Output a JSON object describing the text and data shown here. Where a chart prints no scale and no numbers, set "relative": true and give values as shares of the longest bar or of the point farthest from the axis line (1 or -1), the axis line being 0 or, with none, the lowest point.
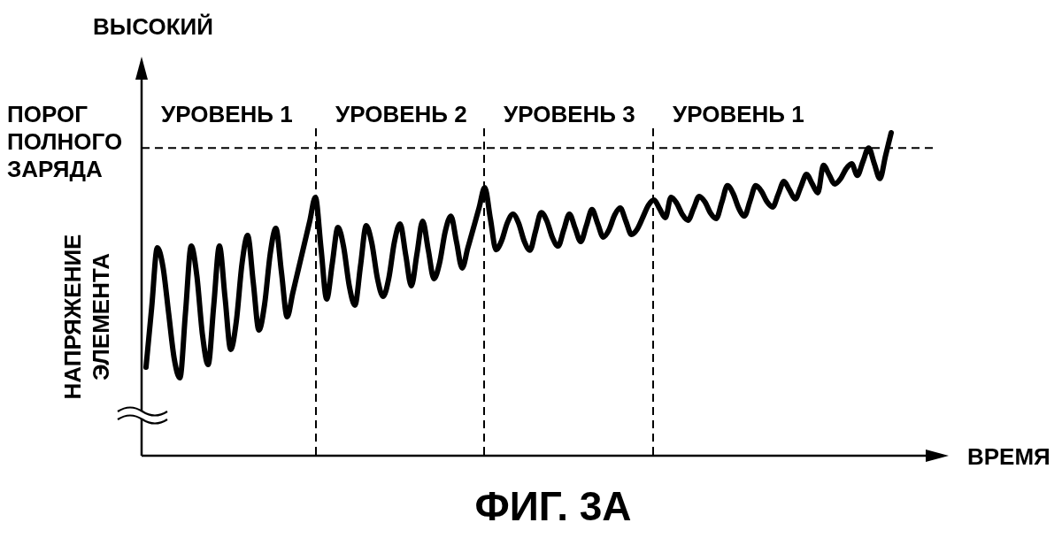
{
  "chart_data": {
    "type": "line",
    "title": "ФИГ. 3А",
    "xlabel": "ВРЕМЯ",
    "ylabel": "НАПРЯЖЕНИЕ ЭЛЕМЕНТА",
    "relative": true,
    "categories": [
      null,
      null,
      null,
      null,
      null,
      null,
      null,
      null,
      null,
      null,
      null,
      null,
      null,
      null,
      null,
      null,
      null,
      null,
      null,
      null,
      null,
      null,
      null,
      null,
      null,
      null,
      null,
      null,
      null,
      null,
      null,
      null,
      null,
      null,
      null,
      null,
      null,
      null,
      null,
      null,
      null,
      null,
      null,
      null,
      null,
      null,
      null,
      null,
      null,
      null,
      null,
      null,
      null,
      null,
      null,
      null,
      null,
      null,
      null,
      null,
      null,
      null,
      null,
      null,
      null,
      null,
      null,
      null,
      null,
      null,
      null,
      null,
      null,
      null,
      null,
      null,
      null,
      null,
      null,
      null,
      null,
      null,
      null,
      null,
      null,
      null,
      null,
      null,
      null,
      null,
      null,
      null,
      null,
      null,
      null,
      null,
      null,
      null,
      null,
      null,
      null,
      null,
      null,
      null,
      null,
      null,
      null,
      null,
      null,
      null,
      null,
      null,
      null,
      null,
      null,
      null,
      null,
      null,
      null,
      null,
      null,
      null,
      null,
      null,
      null,
      null,
      null,
      null,
      null,
      null,
      null,
      null,
      null
    ],
    "color": "#000000",
    "values": [
      0.274,
      0.458,
      0.644,
      0.585,
      0.442,
      0.3,
      0.241,
      0.445,
      0.649,
      0.558,
      0.374,
      0.282,
      0.466,
      0.649,
      0.489,
      0.329,
      0.417,
      0.594,
      0.682,
      0.536,
      0.389,
      0.468,
      0.625,
      0.704,
      0.567,
      0.43,
      0.504,
      0.578,
      0.652,
      0.726,
      0.8,
      0.642,
      0.485,
      0.596,
      0.707,
      0.647,
      0.526,
      0.466,
      0.589,
      0.712,
      0.658,
      0.548,
      0.493,
      0.549,
      0.662,
      0.718,
      0.622,
      0.526,
      0.626,
      0.726,
      0.637,
      0.548,
      0.597,
      0.694,
      0.742,
      0.662,
      0.581,
      0.643,
      0.705,
      0.768,
      0.83,
      0.734,
      0.638,
      0.666,
      0.721,
      0.748,
      0.72,
      0.664,
      0.636,
      0.695,
      0.753,
      0.727,
      0.675,
      0.649,
      0.699,
      0.748,
      0.705,
      0.663,
      0.712,
      0.762,
      0.719,
      0.677,
      0.699,
      0.745,
      0.767,
      0.726,
      0.685,
      0.701,
      0.738,
      0.776,
      0.792,
      0.764,
      0.737,
      0.8,
      0.782,
      0.747,
      0.729,
      0.766,
      0.803,
      0.786,
      0.751,
      0.734,
      0.785,
      0.836,
      0.812,
      0.766,
      0.742,
      0.789,
      0.836,
      0.819,
      0.786,
      0.77,
      0.81,
      0.849,
      0.822,
      0.795,
      0.833,
      0.871,
      0.842,
      0.814,
      0.899,
      0.87,
      0.841,
      0.857,
      0.888,
      0.904,
      0.868,
      0.911,
      0.953,
      0.905,
      0.858,
      0.929,
      1
    ],
    "ref_lines": [
      {
        "axis": "y",
        "value": 0.953,
        "label": "ПОРОГ ПОЛНОГО ЗАРЯДА",
        "line_style": "dashed"
      }
    ],
    "annotations": [
      "ВЫСОКИЙ",
      "УРОВЕНЬ 1",
      "УРОВЕНЬ 2",
      "УРОВЕНЬ 3",
      "УРОВЕНЬ 1"
    ]
  }
}
